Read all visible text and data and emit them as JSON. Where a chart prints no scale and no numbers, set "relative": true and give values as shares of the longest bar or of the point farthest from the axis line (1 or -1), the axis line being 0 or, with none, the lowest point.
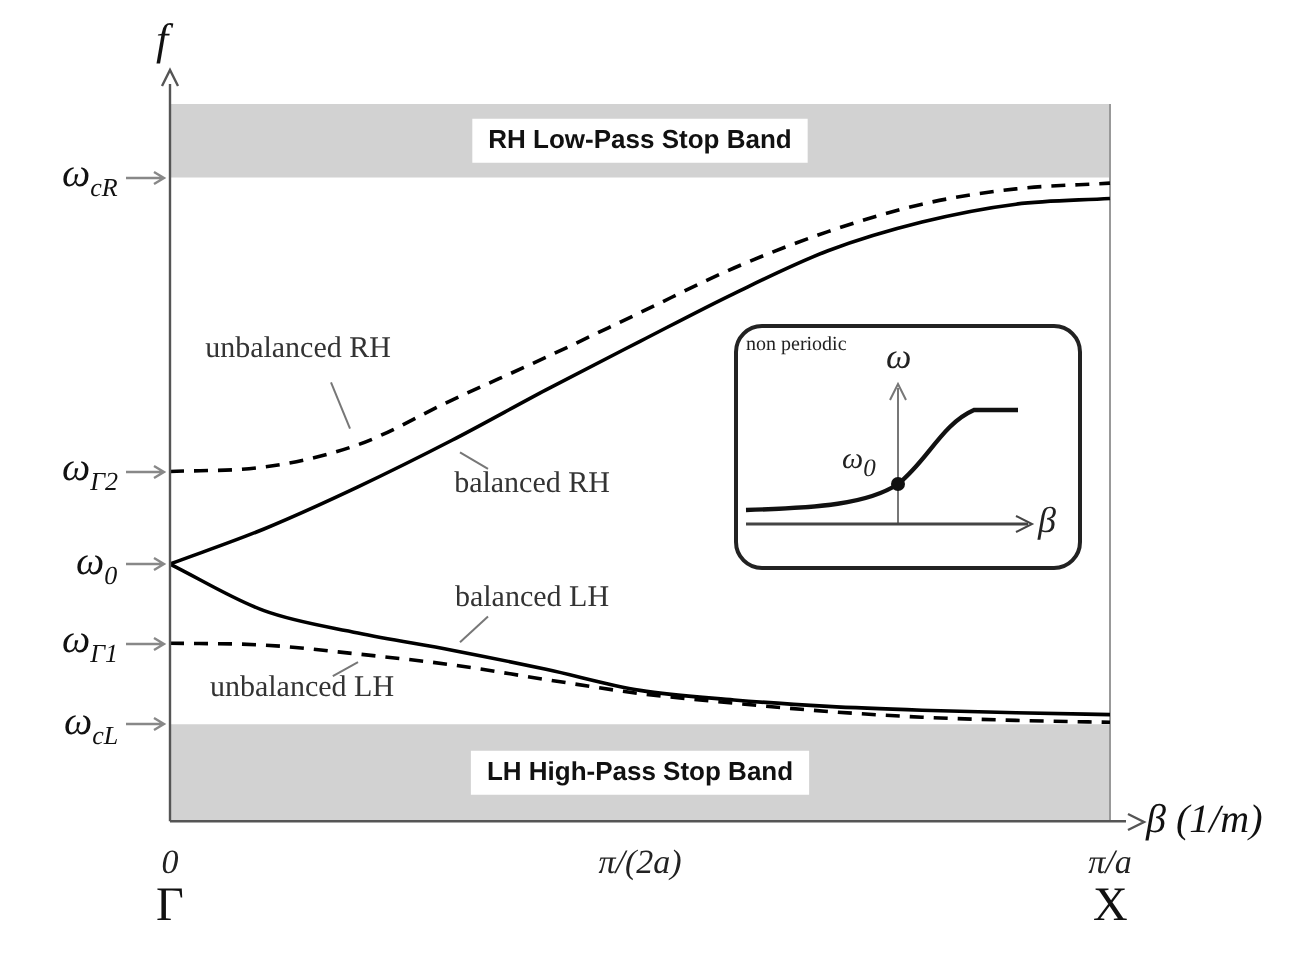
{
  "chart_data": {
    "type": "line",
    "relative": true,
    "xlabel": "β (1/m)",
    "ylabel": "f",
    "categories": [
      "0",
      null,
      null,
      null,
      null,
      "π/(2a)",
      null,
      null,
      null,
      null,
      "π/a"
    ],
    "series": [
      {
        "name": "unbalanced RH",
        "color": "#000000",
        "line_style": "dashed",
        "values": [
          0.548,
          0.555,
          0.59,
          0.66,
          0.727,
          0.797,
          0.867,
          0.924,
          0.967,
          0.991,
          1
        ]
      },
      {
        "name": "balanced RH",
        "color": "#000000",
        "line_style": "solid",
        "values": [
          0.403,
          0.458,
          0.524,
          0.597,
          0.676,
          0.752,
          0.827,
          0.894,
          0.939,
          0.967,
          0.976
        ]
      },
      {
        "name": "balanced LH",
        "color": "#000000",
        "line_style": "solid",
        "values": [
          0.403,
          0.33,
          0.295,
          0.268,
          0.238,
          0.205,
          0.19,
          0.18,
          0.174,
          0.17,
          0.167
        ]
      },
      {
        "name": "unbalanced LH",
        "color": "#000000",
        "line_style": "dashed",
        "values": [
          0.279,
          0.276,
          0.262,
          0.245,
          0.222,
          0.2,
          0.185,
          0.172,
          0.163,
          0.158,
          0.155
        ]
      }
    ],
    "bands": [
      {
        "axis": "y",
        "from": 1.009,
        "to": 1.124,
        "label": "RH Low-Pass Stop Band",
        "color": "#d2d2d2"
      },
      {
        "axis": "y",
        "from": 0,
        "to": 0.152,
        "label": "LH High-Pass Stop Band",
        "color": "#d2d2d2"
      }
    ],
    "annotations": [
      {
        "text": "ω$_{cR}$",
        "x": "0",
        "y": 1.009
      },
      {
        "text": "ω$_{Γ2}$",
        "x": "0",
        "y": 0.548
      },
      {
        "text": "ω$_{0}$",
        "x": "0",
        "y": 0.403
      },
      {
        "text": "ω$_{Γ1}$",
        "x": "0",
        "y": 0.279
      },
      {
        "text": "ω$_{cL}$",
        "x": "0",
        "y": 0.152
      },
      "Γ",
      "X",
      "non periodic",
      "ω",
      "ω$_{0}$",
      "β"
    ],
    "legend": false,
    "grid": false,
    "marker": "none"
  }
}
